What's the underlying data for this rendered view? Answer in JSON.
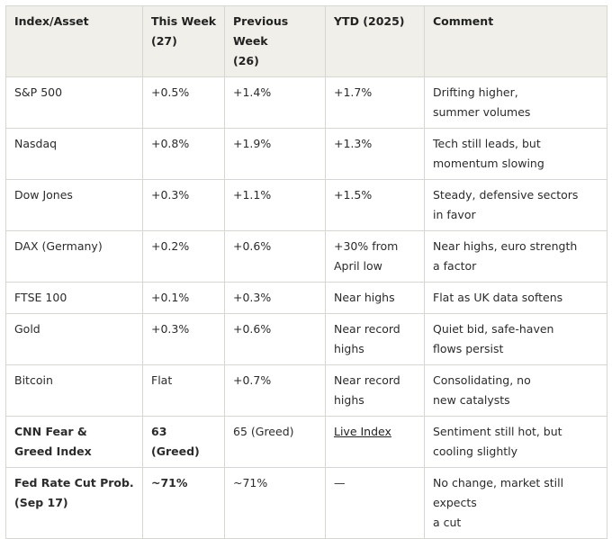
{
  "headers": [
    "Index/Asset",
    "This Week\n(27)",
    "Previous Week\n(26)",
    "YTD (2025)",
    "Comment"
  ],
  "rows": [
    [
      "S&P 500",
      "+0.5%",
      "+1.4%",
      "+1.7%",
      "Drifting higher,\nsummer volumes"
    ],
    [
      "Nasdaq",
      "+0.8%",
      "+1.9%",
      "+1.3%",
      "Tech still leads, but\nmomentum slowing"
    ],
    [
      "Dow Jones",
      "+0.3%",
      "+1.1%",
      "+1.5%",
      "Steady, defensive sectors\nin favor"
    ],
    [
      "DAX (Germany)",
      "+0.2%",
      "+0.6%",
      "+30% from\nApril low",
      "Near highs, euro strength\na factor"
    ],
    [
      "FTSE 100",
      "+0.1%",
      "+0.3%",
      "Near highs",
      "Flat as UK data softens"
    ],
    [
      "Gold",
      "+0.3%",
      "+0.6%",
      "Near record\nhighs",
      "Quiet bid, safe-haven\nflows persist"
    ],
    [
      "Bitcoin",
      "Flat",
      "+0.7%",
      "Near record\nhighs",
      "Consolidating, no\nnew catalysts"
    ],
    [
      "CNN Fear &\nGreed Index",
      "63 (Greed)",
      "65 (Greed)",
      "Live Index",
      "Sentiment still hot, but\ncooling slightly"
    ],
    [
      "Fed Rate Cut Prob.\n(Sep 17)",
      "~71%",
      "~71%",
      "—",
      "No change, market still expects\na cut"
    ]
  ]
}
